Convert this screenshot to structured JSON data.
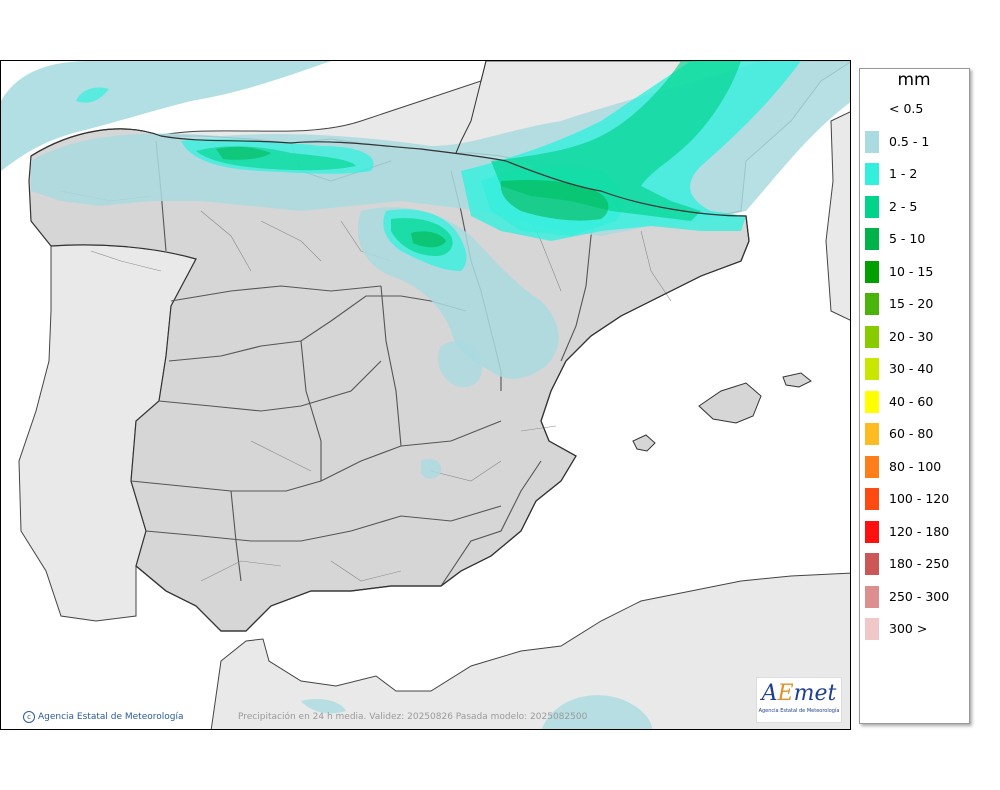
{
  "map": {
    "credit": "Agencia Estatal de Meteorología",
    "footer": "Precipitación en 24 h media. Validez: 20250826 Pasada modelo: 2025082500",
    "logo": {
      "mark_a": "A",
      "mark_e": "E",
      "mark_rest": "met",
      "subtitle": "Agencia Estatal de Meteorología"
    }
  },
  "legend": {
    "title": "mm",
    "items": [
      {
        "label": "< 0.5",
        "color": null
      },
      {
        "label": "0.5 - 1",
        "color": "#aadbe0"
      },
      {
        "label": "1 - 2",
        "color": "#33f0dd"
      },
      {
        "label": "2 - 5",
        "color": "#00d48a"
      },
      {
        "label": "5 - 10",
        "color": "#00b24a"
      },
      {
        "label": "10 - 15",
        "color": "#00a000"
      },
      {
        "label": "15 - 20",
        "color": "#4ab40a"
      },
      {
        "label": "20 - 30",
        "color": "#88cc00"
      },
      {
        "label": "30 - 40",
        "color": "#c8e600"
      },
      {
        "label": "40 - 60",
        "color": "#ffff00"
      },
      {
        "label": "60 - 80",
        "color": "#ffbb22"
      },
      {
        "label": "80 - 100",
        "color": "#ff7e1a"
      },
      {
        "label": "100 - 120",
        "color": "#ff4b12"
      },
      {
        "label": "120 - 180",
        "color": "#ff1010"
      },
      {
        "label": "180 - 250",
        "color": "#cc5555"
      },
      {
        "label": "250 - 300",
        "color": "#dd8f8f"
      },
      {
        "label": "300 >",
        "color": "#f0c8c8"
      }
    ]
  }
}
